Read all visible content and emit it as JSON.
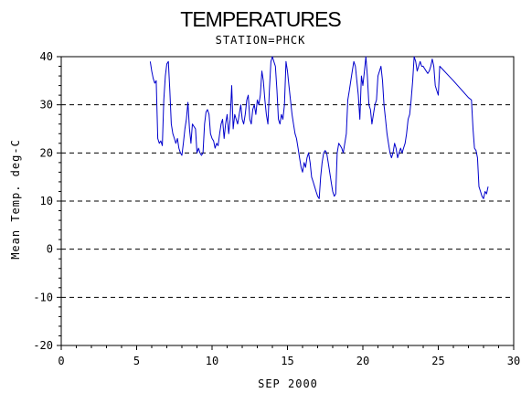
{
  "chart_data": {
    "type": "line",
    "title": "TEMPERATURES",
    "subtitle": "STATION=PHCK",
    "xlabel": "SEP 2000",
    "ylabel": "Mean Temp. deg-C",
    "xlim": [
      0,
      30
    ],
    "ylim": [
      -20,
      40
    ],
    "x_ticks": [
      0,
      5,
      10,
      15,
      20,
      25,
      30
    ],
    "y_ticks": [
      -20,
      -10,
      0,
      10,
      20,
      30,
      40
    ],
    "x_tick_labels": [
      "0",
      "5",
      "10",
      "15",
      "20",
      "25",
      "30"
    ],
    "y_tick_labels": [
      "-20",
      "-10",
      "0",
      "10",
      "20",
      "30",
      "40"
    ],
    "grid": "horizontal dashed at y ticks",
    "colors": {
      "series": "#0000cc",
      "axis": "#000000",
      "grid": "#000000"
    },
    "series": [
      {
        "values": [
          [
            5.9,
            39
          ],
          [
            6.0,
            37
          ],
          [
            6.1,
            35.5
          ],
          [
            6.2,
            34.5
          ],
          [
            6.3,
            35
          ],
          [
            6.4,
            23
          ],
          [
            6.5,
            22
          ],
          [
            6.6,
            22.5
          ],
          [
            6.7,
            21.5
          ],
          [
            6.8,
            31
          ],
          [
            6.9,
            36
          ],
          [
            7.0,
            38.5
          ],
          [
            7.1,
            39
          ],
          [
            7.2,
            33
          ],
          [
            7.3,
            26
          ],
          [
            7.4,
            24
          ],
          [
            7.5,
            23
          ],
          [
            7.6,
            22
          ],
          [
            7.7,
            23
          ],
          [
            7.8,
            21
          ],
          [
            7.9,
            20
          ],
          [
            8.0,
            19.5
          ],
          [
            8.1,
            22
          ],
          [
            8.2,
            25
          ],
          [
            8.3,
            27
          ],
          [
            8.4,
            30.5
          ],
          [
            8.5,
            25
          ],
          [
            8.6,
            22
          ],
          [
            8.7,
            26
          ],
          [
            8.8,
            25.5
          ],
          [
            8.9,
            25
          ],
          [
            9.0,
            20
          ],
          [
            9.1,
            21
          ],
          [
            9.2,
            20
          ],
          [
            9.3,
            19.5
          ],
          [
            9.4,
            20
          ],
          [
            9.5,
            26
          ],
          [
            9.6,
            28.5
          ],
          [
            9.7,
            29
          ],
          [
            9.8,
            28
          ],
          [
            9.9,
            24
          ],
          [
            10.0,
            23
          ],
          [
            10.1,
            22.5
          ],
          [
            10.2,
            21
          ],
          [
            10.3,
            22
          ],
          [
            10.4,
            21.5
          ],
          [
            10.5,
            24
          ],
          [
            10.6,
            26
          ],
          [
            10.7,
            27
          ],
          [
            10.8,
            23
          ],
          [
            10.9,
            26
          ],
          [
            11.0,
            28
          ],
          [
            11.1,
            24
          ],
          [
            11.2,
            27
          ],
          [
            11.3,
            34
          ],
          [
            11.4,
            25
          ],
          [
            11.5,
            28
          ],
          [
            11.6,
            27
          ],
          [
            11.7,
            26
          ],
          [
            11.8,
            28
          ],
          [
            11.9,
            30
          ],
          [
            12.0,
            27
          ],
          [
            12.1,
            26
          ],
          [
            12.2,
            28
          ],
          [
            12.3,
            31
          ],
          [
            12.4,
            32
          ],
          [
            12.5,
            27
          ],
          [
            12.6,
            26
          ],
          [
            12.7,
            29
          ],
          [
            12.8,
            30
          ],
          [
            12.9,
            28
          ],
          [
            13.0,
            31
          ],
          [
            13.1,
            30
          ],
          [
            13.2,
            32
          ],
          [
            13.3,
            37
          ],
          [
            13.4,
            35
          ],
          [
            13.5,
            31
          ],
          [
            13.6,
            28
          ],
          [
            13.7,
            26
          ],
          [
            13.8,
            33
          ],
          [
            13.9,
            39
          ],
          [
            14.0,
            40
          ],
          [
            14.1,
            39
          ],
          [
            14.2,
            38
          ],
          [
            14.3,
            33
          ],
          [
            14.4,
            27
          ],
          [
            14.5,
            26
          ],
          [
            14.6,
            28
          ],
          [
            14.7,
            27
          ],
          [
            14.8,
            30
          ],
          [
            14.9,
            39
          ],
          [
            15.0,
            37
          ],
          [
            15.1,
            34
          ],
          [
            15.2,
            31
          ],
          [
            15.3,
            28
          ],
          [
            15.4,
            26
          ],
          [
            15.5,
            24
          ],
          [
            15.6,
            23
          ],
          [
            15.7,
            21
          ],
          [
            15.8,
            19
          ],
          [
            15.9,
            17
          ],
          [
            16.0,
            16
          ],
          [
            16.1,
            18
          ],
          [
            16.2,
            17
          ],
          [
            16.3,
            19
          ],
          [
            16.4,
            20
          ],
          [
            16.5,
            18
          ],
          [
            16.6,
            15
          ],
          [
            16.7,
            14
          ],
          [
            16.8,
            13
          ],
          [
            16.9,
            12
          ],
          [
            17.0,
            11
          ],
          [
            17.1,
            10.5
          ],
          [
            17.2,
            15
          ],
          [
            17.3,
            18
          ],
          [
            17.4,
            20
          ],
          [
            17.5,
            20.5
          ],
          [
            17.6,
            20
          ],
          [
            17.7,
            18
          ],
          [
            17.8,
            16
          ],
          [
            17.9,
            14
          ],
          [
            18.0,
            12
          ],
          [
            18.1,
            11
          ],
          [
            18.2,
            11.5
          ],
          [
            18.3,
            20
          ],
          [
            18.4,
            22
          ],
          [
            18.5,
            21.5
          ],
          [
            18.6,
            21
          ],
          [
            18.7,
            20
          ],
          [
            18.8,
            22
          ],
          [
            18.9,
            24
          ],
          [
            19.0,
            31
          ],
          [
            19.1,
            33
          ],
          [
            19.2,
            35
          ],
          [
            19.3,
            37
          ],
          [
            19.4,
            39
          ],
          [
            19.5,
            38
          ],
          [
            19.6,
            35
          ],
          [
            19.7,
            32
          ],
          [
            19.8,
            27
          ],
          [
            19.9,
            36
          ],
          [
            20.0,
            34
          ],
          [
            20.1,
            37
          ],
          [
            20.2,
            40
          ],
          [
            20.3,
            36
          ],
          [
            20.4,
            30
          ],
          [
            20.5,
            29
          ],
          [
            20.6,
            26
          ],
          [
            20.7,
            28
          ],
          [
            20.8,
            30
          ],
          [
            20.9,
            31
          ],
          [
            21.0,
            36
          ],
          [
            21.1,
            37
          ],
          [
            21.2,
            38
          ],
          [
            21.3,
            35
          ],
          [
            21.4,
            30
          ],
          [
            21.5,
            27
          ],
          [
            21.6,
            24
          ],
          [
            21.7,
            22
          ],
          [
            21.8,
            20
          ],
          [
            21.9,
            19
          ],
          [
            22.0,
            20
          ],
          [
            22.1,
            22
          ],
          [
            22.2,
            21
          ],
          [
            22.3,
            19
          ],
          [
            22.4,
            20
          ],
          [
            22.5,
            21
          ],
          [
            22.6,
            20
          ],
          [
            22.7,
            21
          ],
          [
            22.8,
            22
          ],
          [
            22.9,
            24
          ],
          [
            23.0,
            27
          ],
          [
            23.1,
            28
          ],
          [
            23.2,
            31
          ],
          [
            23.3,
            35
          ],
          [
            23.4,
            40
          ],
          [
            23.5,
            39
          ],
          [
            23.6,
            37
          ],
          [
            23.7,
            38
          ],
          [
            23.8,
            39
          ],
          [
            23.9,
            38
          ],
          [
            24.0,
            38
          ],
          [
            24.1,
            37.5
          ],
          [
            24.2,
            37
          ],
          [
            24.3,
            36.5
          ],
          [
            24.4,
            37
          ],
          [
            24.5,
            38
          ],
          [
            24.6,
            39.5
          ],
          [
            24.7,
            38
          ],
          [
            24.8,
            34
          ],
          [
            24.9,
            33
          ],
          [
            25.0,
            32
          ],
          [
            25.1,
            38
          ],
          [
            26.0,
            35
          ],
          [
            27.0,
            31.5
          ],
          [
            27.2,
            31
          ],
          [
            27.3,
            25
          ],
          [
            27.4,
            21
          ],
          [
            27.5,
            20.5
          ],
          [
            27.6,
            19
          ],
          [
            27.7,
            13
          ],
          [
            27.8,
            12
          ],
          [
            27.9,
            11
          ],
          [
            28.0,
            10.5
          ],
          [
            28.1,
            12
          ],
          [
            28.2,
            11.5
          ],
          [
            28.3,
            13
          ]
        ]
      }
    ]
  }
}
